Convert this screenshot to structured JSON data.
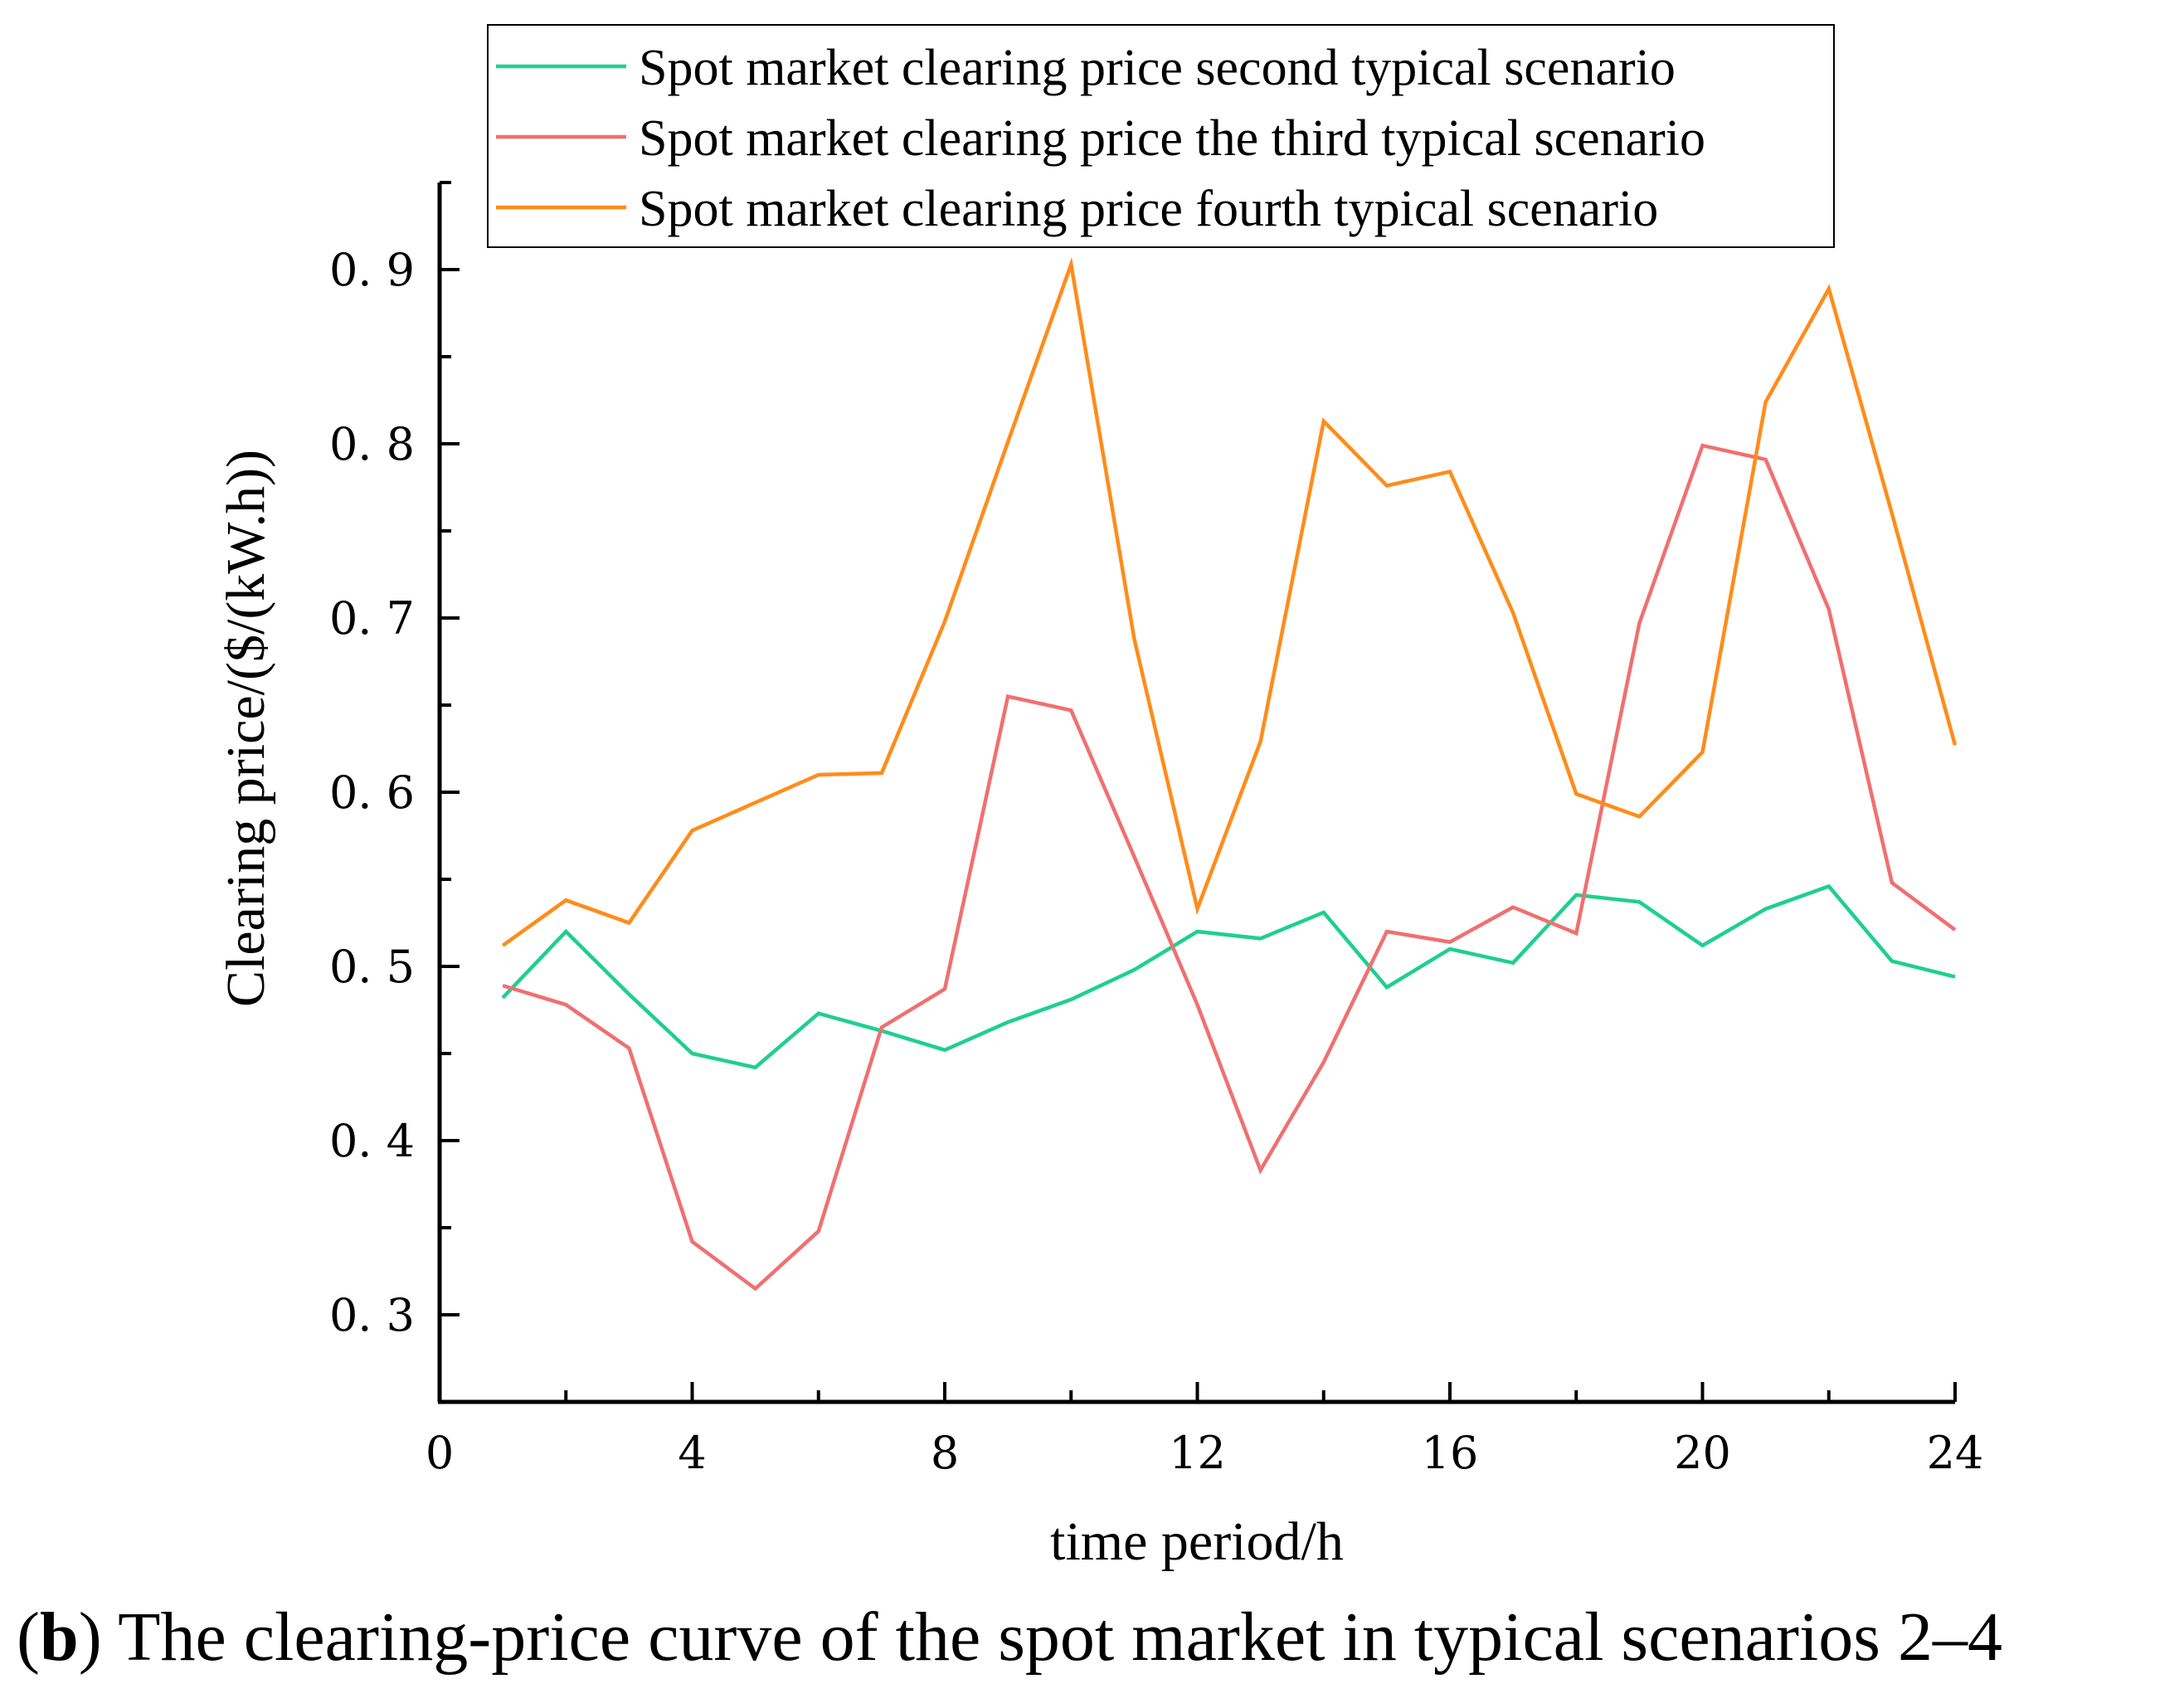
{
  "chart_data": {
    "type": "line",
    "title": "",
    "xlabel": "time period/h",
    "ylabel": "Clearing price/($/(kW.h))",
    "xlim": [
      0,
      24
    ],
    "ylim": [
      0.25,
      0.95
    ],
    "x_ticks": [
      0,
      4,
      8,
      12,
      16,
      20,
      24
    ],
    "x_tick_labels": [
      "0",
      "4",
      "8",
      "12",
      "16",
      "20",
      "24"
    ],
    "y_ticks": [
      0.3,
      0.4,
      0.5,
      0.6,
      0.7,
      0.8,
      0.9
    ],
    "y_tick_labels": [
      "0. 3",
      "0. 4",
      "0. 5",
      "0. 6",
      "0. 7",
      "0. 8",
      "0. 9"
    ],
    "grid": false,
    "legend_position": "top-right",
    "x": [
      1,
      2,
      3,
      4,
      5,
      6,
      7,
      8,
      9,
      10,
      11,
      12,
      13,
      14,
      15,
      16,
      17,
      18,
      19,
      20,
      21,
      22,
      23,
      24
    ],
    "series": [
      {
        "name": "Spot market clearing price second typical scenario",
        "color": "#1fcf8f",
        "values": [
          0.482,
          0.52,
          0.484,
          0.45,
          0.442,
          0.473,
          0.463,
          0.452,
          0.468,
          0.481,
          0.498,
          0.52,
          0.516,
          0.531,
          0.488,
          0.51,
          0.502,
          0.541,
          0.537,
          0.512,
          0.533,
          0.546,
          0.503,
          0.494
        ]
      },
      {
        "name": "Spot market clearing price the third typical scenario",
        "color": "#f07070",
        "values": [
          0.489,
          0.478,
          0.453,
          0.342,
          0.315,
          0.348,
          0.465,
          0.487,
          0.655,
          0.647,
          0.563,
          0.478,
          0.383,
          0.445,
          0.52,
          0.514,
          0.534,
          0.519,
          0.697,
          0.799,
          0.791,
          0.705,
          0.548,
          0.521
        ]
      },
      {
        "name": "Spot market clearing price fourth typical scenario",
        "color": "#ff8c1a",
        "values": [
          0.512,
          0.538,
          0.525,
          0.578,
          0.594,
          0.61,
          0.611,
          0.698,
          0.801,
          0.903,
          0.688,
          0.533,
          0.629,
          0.813,
          0.776,
          0.784,
          0.703,
          0.599,
          0.586,
          0.623,
          0.824,
          0.889,
          0.76,
          0.627
        ]
      }
    ]
  },
  "caption": {
    "label": "b",
    "open_paren": "(",
    "close_paren": ")",
    "text": " The clearing-price curve of the spot market in typical scenarios 2–4"
  }
}
